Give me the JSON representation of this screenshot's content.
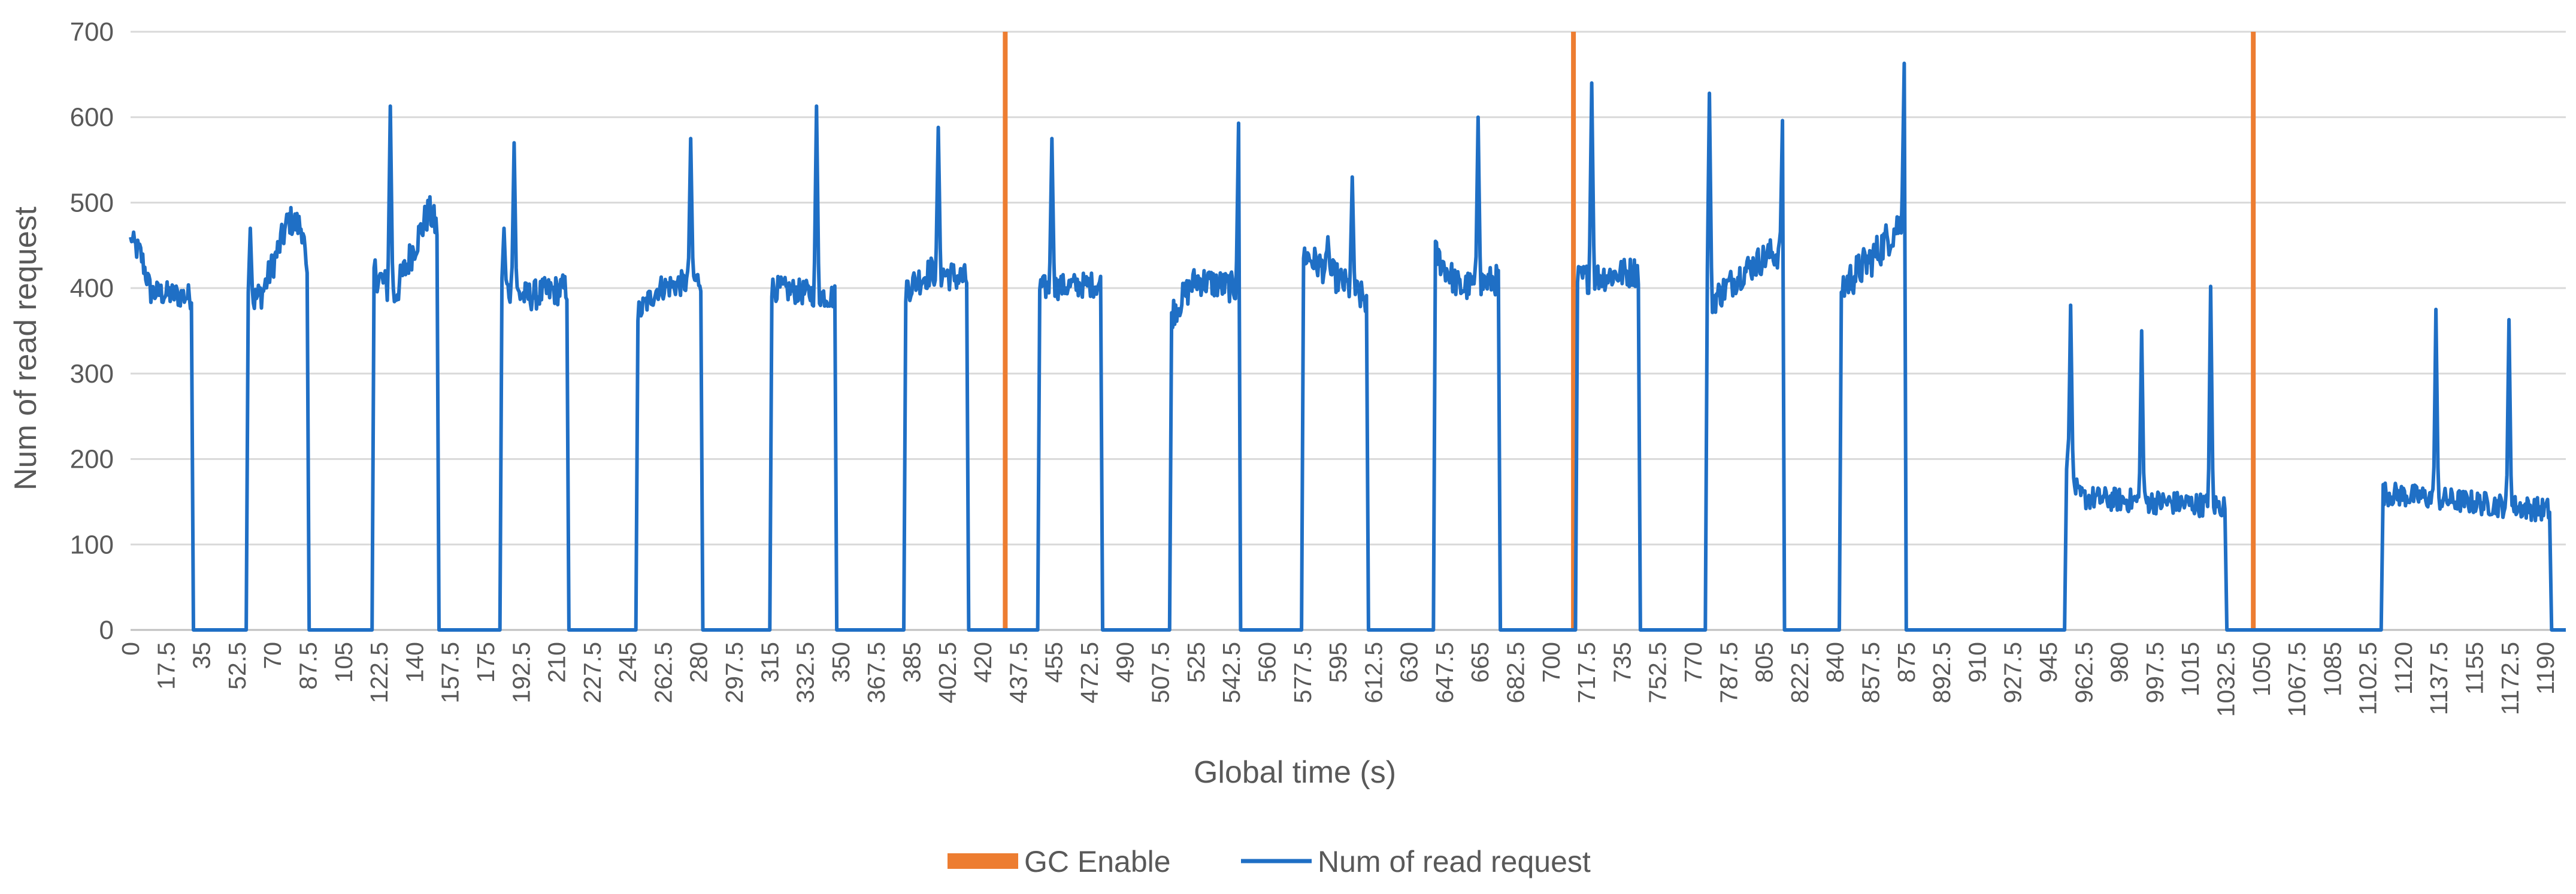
{
  "chart_data": {
    "type": "line",
    "title": "",
    "xlabel": "Global time (s)",
    "ylabel": "Num of read request",
    "ylim": [
      0,
      700
    ],
    "xlim": [
      0,
      1200
    ],
    "y_ticks": [
      0,
      100,
      200,
      300,
      400,
      500,
      600,
      700
    ],
    "x_step": 17.5,
    "x_tick_labels": [
      "0",
      "17.5",
      "35",
      "52.5",
      "70",
      "87.5",
      "105",
      "122.5",
      "140",
      "157.5",
      "175",
      "192.5",
      "210",
      "227.5",
      "245",
      "262.5",
      "280",
      "297.5",
      "315",
      "332.5",
      "350",
      "367.5",
      "385",
      "402.5",
      "420",
      "437.5",
      "455",
      "472.5",
      "490",
      "507.5",
      "525",
      "542.5",
      "560",
      "577.5",
      "595",
      "612.5",
      "630",
      "647.5",
      "665",
      "682.5",
      "700",
      "717.5",
      "735",
      "752.5",
      "770",
      "787.5",
      "805",
      "822.5",
      "840",
      "857.5",
      "875",
      "892.5",
      "910",
      "927.5",
      "945",
      "962.5",
      "980",
      "997.5",
      "1015",
      "1032.5",
      "1050",
      "1067.5",
      "1085",
      "1102.5",
      "1120",
      "1137.5",
      "1155",
      "1172.5",
      "1190"
    ],
    "grid": true,
    "legend_position": "bottom",
    "colors": {
      "gc": "#ED7D31",
      "read": "#1F6FC5",
      "grid": "#D9D9D9",
      "text": "#595959"
    },
    "series": [
      {
        "name": "GC Enable",
        "kind": "event-marker",
        "x": [
          431,
          711,
          1046
        ]
      },
      {
        "name": "Num of read request",
        "kind": "line",
        "bursts": [
          {
            "start": 0,
            "end": 30,
            "base": 390,
            "noise": 15,
            "spikes": [
              [
                1,
                455
              ]
            ],
            "ramp": [
              [
                0,
                455
              ],
              [
                5,
                440
              ],
              [
                10,
                395
              ],
              [
                30,
                390
              ]
            ]
          },
          {
            "start": 58,
            "end": 87,
            "base": 405,
            "noise": 18,
            "spikes": [
              [
                59,
                470
              ]
            ],
            "ramp": [
              [
                58,
                380
              ],
              [
                65,
                395
              ],
              [
                72,
                440
              ],
              [
                78,
                480
              ],
              [
                85,
                470
              ],
              [
                87,
                400
              ]
            ]
          },
          {
            "start": 120,
            "end": 151,
            "base": 400,
            "noise": 20,
            "spikes": [
              [
                128,
                613
              ]
            ],
            "ramp": [
              [
                120,
                420
              ],
              [
                130,
                390
              ],
              [
                140,
                450
              ],
              [
                147,
                490
              ],
              [
                151,
                470
              ]
            ]
          },
          {
            "start": 183,
            "end": 215,
            "base": 395,
            "noise": 18,
            "spikes": [
              [
                189,
                570
              ],
              [
                184,
                470
              ]
            ],
            "ramp": [
              [
                183,
                400
              ],
              [
                195,
                390
              ],
              [
                215,
                400
              ]
            ]
          },
          {
            "start": 250,
            "end": 281,
            "base": 405,
            "noise": 15,
            "spikes": [
              [
                276,
                575
              ]
            ],
            "ramp": [
              [
                250,
                370
              ],
              [
                260,
                400
              ],
              [
                281,
                410
              ]
            ]
          },
          {
            "start": 316,
            "end": 347,
            "base": 405,
            "noise": 15,
            "spikes": [
              [
                338,
                613
              ]
            ],
            "ramp": [
              [
                316,
                400
              ],
              [
                347,
                390
              ]
            ]
          },
          {
            "start": 382,
            "end": 412,
            "base": 405,
            "noise": 18,
            "spikes": [
              [
                398,
                588
              ]
            ],
            "ramp": [
              [
                382,
                400
              ],
              [
                395,
                420
              ],
              [
                412,
                410
              ]
            ]
          },
          {
            "start": 448,
            "end": 478,
            "base": 405,
            "noise": 15,
            "spikes": [
              [
                454,
                575
              ]
            ],
            "ramp": [
              [
                448,
                400
              ],
              [
                478,
                405
              ]
            ]
          },
          {
            "start": 513,
            "end": 544,
            "base": 405,
            "noise": 18,
            "spikes": [
              [
                546,
                593
              ]
            ],
            "ramp": [
              [
                513,
                370
              ],
              [
                525,
                410
              ],
              [
                544,
                400
              ]
            ]
          },
          {
            "start": 578,
            "end": 609,
            "base": 410,
            "noise": 18,
            "spikes": [
              [
                602,
                530
              ],
              [
                590,
                460
              ]
            ],
            "ramp": [
              [
                578,
                440
              ],
              [
                590,
                420
              ],
              [
                609,
                385
              ]
            ]
          },
          {
            "start": 643,
            "end": 674,
            "base": 405,
            "noise": 18,
            "spikes": [
              [
                664,
                600
              ]
            ],
            "ramp": [
              [
                643,
                440
              ],
              [
                655,
                400
              ],
              [
                674,
                410
              ]
            ]
          },
          {
            "start": 713,
            "end": 743,
            "base": 400,
            "noise": 18,
            "spikes": [
              [
                720,
                640
              ]
            ],
            "ramp": [
              [
                713,
                410
              ],
              [
                743,
                420
              ]
            ]
          },
          {
            "start": 777,
            "end": 808,
            "base": 410,
            "noise": 18,
            "spikes": [
              [
                778,
                628
              ],
              [
                814,
                596
              ]
            ],
            "ramp": [
              [
                777,
                380
              ],
              [
                795,
                420
              ],
              [
                808,
                440
              ]
            ]
          },
          {
            "start": 843,
            "end": 873,
            "base": 420,
            "noise": 22,
            "spikes": [
              [
                874,
                663
              ]
            ],
            "ramp": [
              [
                843,
                400
              ],
              [
                860,
                440
              ],
              [
                873,
                480
              ]
            ]
          },
          {
            "start": 954,
            "end": 1032,
            "base": 152,
            "noise": 14,
            "spikes": [
              [
                956,
                380
              ],
              [
                991,
                350
              ],
              [
                1025,
                402
              ]
            ],
            "ramp": [
              [
                954,
                200
              ],
              [
                960,
                155
              ],
              [
                1032,
                145
              ]
            ]
          },
          {
            "start": 1110,
            "end": 1192,
            "base": 155,
            "noise": 14,
            "spikes": [
              [
                1136,
                375
              ],
              [
                1172,
                363
              ]
            ],
            "ramp": [
              [
                1110,
                160
              ],
              [
                1192,
                140
              ]
            ]
          }
        ]
      }
    ]
  }
}
